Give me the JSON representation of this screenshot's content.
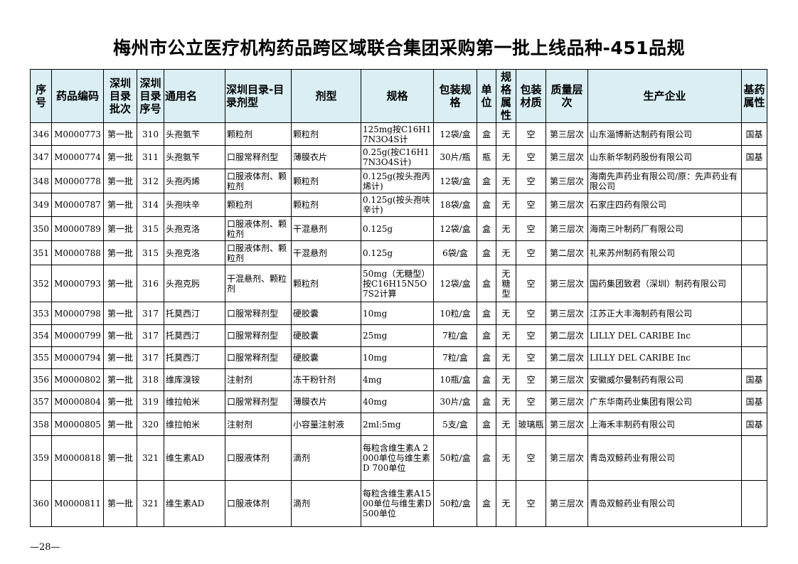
{
  "title": "梅州市公立医疗机构药品跨区域联合集团采购第一批上线品种-451品规",
  "columns": [
    "序号",
    "药品编码",
    "深圳目录批次",
    "深圳目录序号",
    "通用名",
    "深圳目录-目录剂型",
    "剂型",
    "规格",
    "包装规格",
    "单位",
    "规格属性",
    "包装材质",
    "质量层次",
    "生产企业",
    "基药属性"
  ],
  "rows": [
    [
      "346",
      "M0000773",
      "第一批",
      "310",
      "头孢氨苄",
      "颗粒剂",
      "颗粒剂",
      "125mg按C16H17N3O4S计",
      "12袋/盒",
      "盒",
      "无",
      "空",
      "第三层次",
      "山东淄博新达制药有限公司",
      "国基"
    ],
    [
      "347",
      "M0000774",
      "第一批",
      "311",
      "头孢氨苄",
      "口服常释剂型",
      "薄膜衣片",
      "0.25g(按C16H17N3O4S计)",
      "30片/瓶",
      "瓶",
      "无",
      "空",
      "第三层次",
      "山东新华制药股份有限公司",
      "国基"
    ],
    [
      "348",
      "M0000778",
      "第一批",
      "312",
      "头孢丙烯",
      "口服液体剂、颗粒剂",
      "颗粒剂",
      "0.125g(按头孢丙烯计)",
      "12袋/盒",
      "盒",
      "无",
      "空",
      "第三层次",
      "海南先声药业有限公司/原：先声药业有限公司",
      ""
    ],
    [
      "349",
      "M0000787",
      "第一批",
      "314",
      "头孢呋辛",
      "颗粒剂",
      "颗粒剂",
      "0.125g(按头孢呋辛计)",
      "18袋/盒",
      "盒",
      "无",
      "空",
      "第三层次",
      "石家庄四药有限公司",
      ""
    ],
    [
      "350",
      "M0000789",
      "第一批",
      "315",
      "头孢克洛",
      "口服液体剂、颗粒剂",
      "干混悬剂",
      "0.125g",
      "12袋/盒",
      "盒",
      "无",
      "空",
      "第三层次",
      "海南三叶制药厂有限公司",
      ""
    ],
    [
      "351",
      "M0000788",
      "第一批",
      "315",
      "头孢克洛",
      "口服液体剂、颗粒剂",
      "干混悬剂",
      "0.125g",
      "6袋/盒",
      "盒",
      "无",
      "空",
      "第二层次",
      "礼来苏州制药有限公司",
      ""
    ],
    [
      "352",
      "M0000793",
      "第一批",
      "316",
      "头孢克肟",
      "干混悬剂、颗粒剂",
      "颗粒剂",
      "50mg（无糖型）按C16H15N5O7S2计算",
      "12袋/盒",
      "盒",
      "无糖型",
      "空",
      "第三层次",
      "国药集团致君（深圳）制药有限公司",
      ""
    ],
    [
      "353",
      "M0000798",
      "第一批",
      "317",
      "托莫西汀",
      "口服常释剂型",
      "硬胶囊",
      "10mg",
      "10粒/盒",
      "盒",
      "无",
      "空",
      "第三层次",
      "江苏正大丰海制药有限公司",
      ""
    ],
    [
      "354",
      "M0000799",
      "第一批",
      "317",
      "托莫西汀",
      "口服常释剂型",
      "硬胶囊",
      "25mg",
      "7粒/盒",
      "盒",
      "无",
      "空",
      "第二层次",
      "LILLY DEL CARIBE Inc",
      ""
    ],
    [
      "355",
      "M0000794",
      "第一批",
      "317",
      "托莫西汀",
      "口服常释剂型",
      "硬胶囊",
      "10mg",
      "7粒/盒",
      "盒",
      "无",
      "空",
      "第二层次",
      "LILLY DEL CARIBE Inc",
      ""
    ],
    [
      "356",
      "M0000802",
      "第一批",
      "318",
      "维库溴铵",
      "注射剂",
      "冻干粉针剂",
      "4mg",
      "10瓶/盒",
      "盒",
      "无",
      "空",
      "第三层次",
      "安徽威尔曼制药有限公司",
      "国基"
    ],
    [
      "357",
      "M0000804",
      "第一批",
      "319",
      "维拉帕米",
      "口服常释剂型",
      "薄膜衣片",
      "40mg",
      "30片/盒",
      "盒",
      "无",
      "空",
      "第三层次",
      "广东华南药业集团有限公司",
      "国基"
    ],
    [
      "358",
      "M0000805",
      "第一批",
      "320",
      "维拉帕米",
      "注射剂",
      "小容量注射液",
      "2ml:5mg",
      "5支/盒",
      "盒",
      "无",
      "玻璃瓶",
      "第三层次",
      "上海禾丰制药有限公司",
      "国基"
    ],
    [
      "359",
      "M0000818",
      "第一批",
      "321",
      "维生素AD",
      "口服液体剂",
      "滴剂",
      "每粒含维生素A 2000单位与维生素D 700单位",
      "50粒/盒",
      "盒",
      "无",
      "空",
      "第三层次",
      "青岛双鲸药业有限公司",
      ""
    ],
    [
      "360",
      "M0000811",
      "第一批",
      "321",
      "维生素AD",
      "口服液体剂",
      "滴剂",
      "每粒含维生素A1500单位与维生素D500单位",
      "50粒/盒",
      "盒",
      "无",
      "空",
      "第三层次",
      "青岛双鲸药业有限公司",
      ""
    ]
  ],
  "footer": "—28—"
}
